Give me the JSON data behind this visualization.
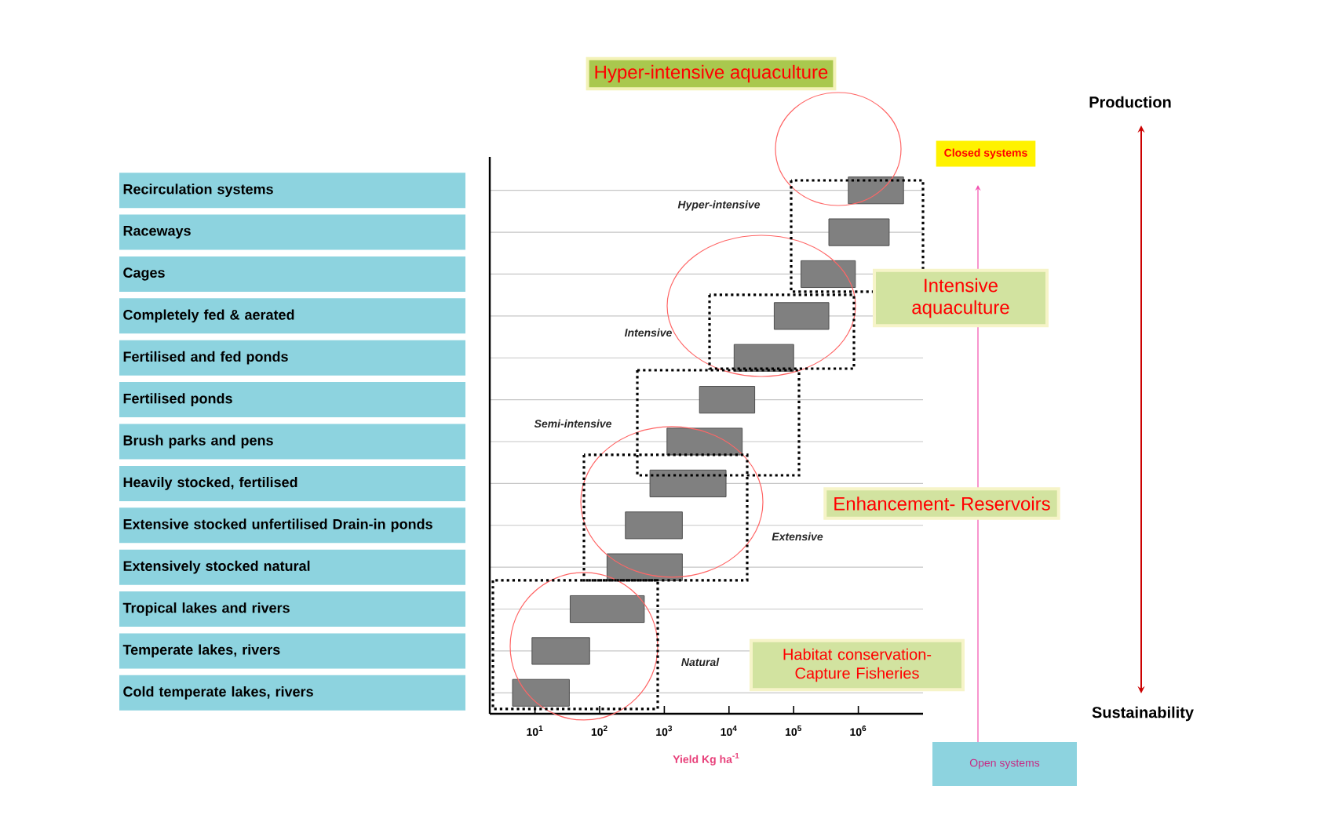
{
  "chart_data": {
    "type": "bar",
    "orientation": "horizontal",
    "log": "x",
    "xlabel": "Yield Kg ha$^{-1}$",
    "categories": [
      "Recirculation systems",
      "Raceways",
      "Cages",
      "Completely fed & aerated",
      "Fertilised and fed ponds",
      "Fertilised ponds",
      "Brush parks and pens",
      "Heavily stocked, fertilised",
      "Extensive stocked unfertilised Drain-in ponds",
      "Extensively stocked natural",
      "Tropical lakes and rivers",
      "Temperate lakes, rivers",
      "Cold temperate lakes, rivers"
    ],
    "base": [
      700000,
      350000,
      130000,
      50000,
      12000,
      3500,
      1100,
      600,
      250,
      130,
      35,
      9,
      4.5
    ],
    "values": [
      4300000,
      2650000,
      770000,
      300000,
      88000,
      21500,
      14900,
      8400,
      1650,
      1770,
      455,
      61,
      29.5
    ],
    "color": "#808080",
    "xlim": [
      2,
      10000000
    ],
    "xticks": [
      {
        "value": 10,
        "label": "10$^{1}$"
      },
      {
        "value": 100,
        "label": "10$^{2}$"
      },
      {
        "value": 1000,
        "label": "10$^{3}$"
      },
      {
        "value": 10000,
        "label": "10$^{4}$"
      },
      {
        "value": 100000,
        "label": "10$^{5}$"
      },
      {
        "value": 1000000,
        "label": "10$^{6}$"
      }
    ],
    "grid": "y",
    "annotations": [
      "Hyper-intensive aquaculture",
      "Closed systems",
      "Production",
      "Hyper-intensive",
      "Intensive aquaculture",
      "Intensive",
      "Semi-intensive",
      "Enhancement- Reservoirs",
      "Extensive",
      "Habitat conservation- Capture Fisheries",
      "Natural",
      "Sustainability",
      "Open systems"
    ]
  }
}
